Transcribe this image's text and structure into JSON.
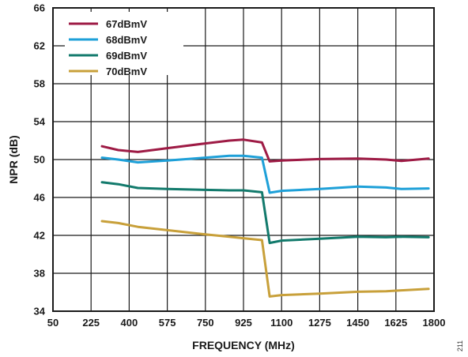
{
  "chart_data": {
    "type": "line",
    "xlabel": "FREQUENCY (MHz)",
    "ylabel": "NPR (dB)",
    "xlim": [
      50,
      1800
    ],
    "ylim": [
      34,
      66
    ],
    "x_ticks": [
      "50",
      "225",
      "400",
      "575",
      "750",
      "925",
      "1100",
      "1275",
      "1450",
      "1625",
      "1800"
    ],
    "y_ticks": [
      "34",
      "38",
      "42",
      "46",
      "50",
      "54",
      "58",
      "62",
      "66"
    ],
    "grid": true,
    "legend_position": "top-left",
    "figure_number": "211",
    "series": [
      {
        "name": "67dBmV",
        "color": "#9e1b45",
        "points": [
          [
            275,
            51.4
          ],
          [
            350,
            51.0
          ],
          [
            440,
            50.8
          ],
          [
            575,
            51.2
          ],
          [
            750,
            51.7
          ],
          [
            860,
            52.0
          ],
          [
            925,
            52.1
          ],
          [
            1010,
            51.8
          ],
          [
            1045,
            49.8
          ],
          [
            1100,
            49.9
          ],
          [
            1275,
            50.05
          ],
          [
            1450,
            50.1
          ],
          [
            1580,
            50.0
          ],
          [
            1650,
            49.85
          ],
          [
            1775,
            50.1
          ]
        ]
      },
      {
        "name": "68dBmV",
        "color": "#1ea0d8",
        "points": [
          [
            275,
            50.2
          ],
          [
            350,
            50.0
          ],
          [
            440,
            49.7
          ],
          [
            575,
            49.9
          ],
          [
            750,
            50.2
          ],
          [
            860,
            50.4
          ],
          [
            925,
            50.4
          ],
          [
            1010,
            50.2
          ],
          [
            1045,
            46.5
          ],
          [
            1100,
            46.7
          ],
          [
            1275,
            46.9
          ],
          [
            1450,
            47.15
          ],
          [
            1580,
            47.05
          ],
          [
            1650,
            46.9
          ],
          [
            1775,
            46.95
          ]
        ]
      },
      {
        "name": "69dBmV",
        "color": "#127a6c",
        "points": [
          [
            275,
            47.6
          ],
          [
            350,
            47.4
          ],
          [
            440,
            47.0
          ],
          [
            575,
            46.9
          ],
          [
            750,
            46.8
          ],
          [
            860,
            46.75
          ],
          [
            925,
            46.75
          ],
          [
            1010,
            46.55
          ],
          [
            1045,
            41.2
          ],
          [
            1100,
            41.45
          ],
          [
            1275,
            41.65
          ],
          [
            1450,
            41.85
          ],
          [
            1580,
            41.8
          ],
          [
            1650,
            41.85
          ],
          [
            1775,
            41.8
          ]
        ]
      },
      {
        "name": "70dBmV",
        "color": "#c8a03a",
        "points": [
          [
            275,
            43.5
          ],
          [
            350,
            43.3
          ],
          [
            440,
            42.9
          ],
          [
            575,
            42.55
          ],
          [
            750,
            42.1
          ],
          [
            860,
            41.85
          ],
          [
            925,
            41.7
          ],
          [
            1010,
            41.5
          ],
          [
            1045,
            35.55
          ],
          [
            1100,
            35.7
          ],
          [
            1275,
            35.85
          ],
          [
            1450,
            36.05
          ],
          [
            1580,
            36.1
          ],
          [
            1650,
            36.2
          ],
          [
            1775,
            36.35
          ]
        ]
      }
    ]
  }
}
